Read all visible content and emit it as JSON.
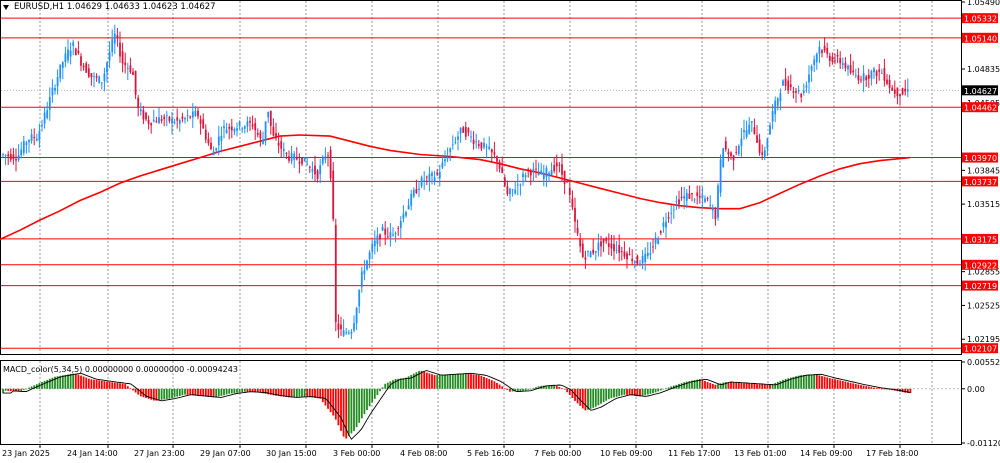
{
  "header": {
    "symbol": "EURUSD,H1",
    "ohlc": "1.04629 1.04633 1.04623 1.04627"
  },
  "price_axis": {
    "ticks": [
      "1.05490",
      "1.04835",
      "1.04505",
      "1.03845",
      "1.03515",
      "1.02855",
      "1.02525",
      "1.02195"
    ],
    "current_price": "1.04627"
  },
  "levels": [
    {
      "label": "1.05332",
      "value": 1.05332
    },
    {
      "label": "1.05140",
      "value": 1.0514
    },
    {
      "label": "1.04462",
      "value": 1.04462
    },
    {
      "label": "1.03970",
      "value": 1.0397
    },
    {
      "label": "1.03737",
      "value": 1.03737
    },
    {
      "label": "1.03175",
      "value": 1.03175
    },
    {
      "label": "1.02922",
      "value": 1.02922
    },
    {
      "label": "1.02719",
      "value": 1.02719
    },
    {
      "label": "1.02107",
      "value": 1.02107
    }
  ],
  "time_axis": {
    "labels": [
      "23 Jan 2025",
      "24 Jan 14:00",
      "27 Jan 23:00",
      "29 Jan 07:00",
      "30 Jan 15:00",
      "3 Feb 00:00",
      "4 Feb 08:00",
      "5 Feb 16:00",
      "7 Feb 00:00",
      "10 Feb 09:00",
      "11 Feb 17:00",
      "13 Feb 01:00",
      "14 Feb 09:00",
      "17 Feb 18:00"
    ]
  },
  "macd": {
    "title": "MACD_color(5,34,5) 0.00000000 0.00000000 -0.00094243",
    "ticks": [
      "0.0055297",
      "0.00",
      "-0.0112033"
    ]
  },
  "colors": {
    "bull": "#1e90ff",
    "bear": "#dc143c",
    "level_line": "#ff0000",
    "ma_line": "#ff0000",
    "macd_pos": "#228b22",
    "macd_neg": "#ff0000",
    "signal": "#000000",
    "price_badge_bg": "#000000"
  },
  "chart_data": {
    "type": "candlestick",
    "symbol": "EURUSD",
    "timeframe": "H1",
    "ylim": [
      1.0207,
      1.0549
    ],
    "moving_average": [
      [
        0,
        1.0317
      ],
      [
        20,
        1.0326
      ],
      [
        40,
        1.0336
      ],
      [
        60,
        1.0345
      ],
      [
        80,
        1.0355
      ],
      [
        100,
        1.0363
      ],
      [
        120,
        1.0372
      ],
      [
        140,
        1.0379
      ],
      [
        160,
        1.0385
      ],
      [
        180,
        1.0391
      ],
      [
        200,
        1.0397
      ],
      [
        220,
        1.0403
      ],
      [
        240,
        1.0408
      ],
      [
        260,
        1.0413
      ],
      [
        280,
        1.0418
      ],
      [
        300,
        1.0419
      ],
      [
        330,
        1.0418
      ],
      [
        350,
        1.0413
      ],
      [
        370,
        1.0408
      ],
      [
        390,
        1.0404
      ],
      [
        420,
        1.04
      ],
      [
        450,
        1.0398
      ],
      [
        480,
        1.0395
      ],
      [
        500,
        1.0391
      ],
      [
        520,
        1.0386
      ],
      [
        540,
        1.0382
      ],
      [
        560,
        1.0377
      ],
      [
        580,
        1.0372
      ],
      [
        600,
        1.0367
      ],
      [
        620,
        1.0362
      ],
      [
        640,
        1.0357
      ],
      [
        660,
        1.0353
      ],
      [
        680,
        1.035
      ],
      [
        700,
        1.0348
      ],
      [
        720,
        1.0347
      ],
      [
        740,
        1.0347
      ],
      [
        760,
        1.0353
      ],
      [
        780,
        1.0362
      ],
      [
        800,
        1.0371
      ],
      [
        820,
        1.0379
      ],
      [
        840,
        1.0386
      ],
      [
        860,
        1.0391
      ],
      [
        880,
        1.0394
      ],
      [
        900,
        1.0396
      ],
      [
        910,
        1.0397
      ]
    ],
    "price_path": [
      [
        3,
        1.04
      ],
      [
        20,
        1.0398
      ],
      [
        30,
        1.0415
      ],
      [
        40,
        1.0418
      ],
      [
        48,
        1.044
      ],
      [
        55,
        1.0462
      ],
      [
        65,
        1.049
      ],
      [
        75,
        1.0508
      ],
      [
        85,
        1.0488
      ],
      [
        95,
        1.0475
      ],
      [
        105,
        1.0472
      ],
      [
        112,
        1.05
      ],
      [
        118,
        1.0518
      ],
      [
        125,
        1.049
      ],
      [
        135,
        1.0482
      ],
      [
        140,
        1.0445
      ],
      [
        150,
        1.0432
      ],
      [
        165,
        1.0435
      ],
      [
        180,
        1.0432
      ],
      [
        200,
        1.044
      ],
      [
        215,
        1.04
      ],
      [
        225,
        1.0425
      ],
      [
        240,
        1.0428
      ],
      [
        255,
        1.043
      ],
      [
        265,
        1.041
      ],
      [
        270,
        1.0448
      ],
      [
        275,
        1.0418
      ],
      [
        290,
        1.0398
      ],
      [
        305,
        1.0395
      ],
      [
        320,
        1.038
      ],
      [
        330,
        1.0405
      ],
      [
        335,
        1.0368
      ],
      [
        338,
        1.0235
      ],
      [
        345,
        1.0225
      ],
      [
        355,
        1.023
      ],
      [
        365,
        1.0285
      ],
      [
        375,
        1.031
      ],
      [
        385,
        1.0325
      ],
      [
        395,
        1.032
      ],
      [
        405,
        1.034
      ],
      [
        415,
        1.036
      ],
      [
        425,
        1.0375
      ],
      [
        440,
        1.038
      ],
      [
        455,
        1.041
      ],
      [
        465,
        1.0425
      ],
      [
        475,
        1.0415
      ],
      [
        490,
        1.0405
      ],
      [
        500,
        1.0395
      ],
      [
        510,
        1.036
      ],
      [
        520,
        1.037
      ],
      [
        530,
        1.0385
      ],
      [
        545,
        1.038
      ],
      [
        560,
        1.039
      ],
      [
        570,
        1.037
      ],
      [
        578,
        1.033
      ],
      [
        585,
        1.03
      ],
      [
        595,
        1.0305
      ],
      [
        605,
        1.0315
      ],
      [
        615,
        1.031
      ],
      [
        625,
        1.0305
      ],
      [
        640,
        1.0295
      ],
      [
        650,
        1.03
      ],
      [
        660,
        1.032
      ],
      [
        670,
        1.034
      ],
      [
        680,
        1.0355
      ],
      [
        690,
        1.036
      ],
      [
        700,
        1.0358
      ],
      [
        710,
        1.0355
      ],
      [
        718,
        1.034
      ],
      [
        725,
        1.041
      ],
      [
        735,
        1.0395
      ],
      [
        745,
        1.042
      ],
      [
        755,
        1.043
      ],
      [
        765,
        1.0395
      ],
      [
        775,
        1.044
      ],
      [
        785,
        1.047
      ],
      [
        795,
        1.0465
      ],
      [
        805,
        1.0458
      ],
      [
        815,
        1.049
      ],
      [
        822,
        1.0505
      ],
      [
        832,
        1.0495
      ],
      [
        845,
        1.049
      ],
      [
        855,
        1.0478
      ],
      [
        865,
        1.0475
      ],
      [
        875,
        1.048
      ],
      [
        885,
        1.048
      ],
      [
        895,
        1.0462
      ],
      [
        905,
        1.046
      ],
      [
        910,
        1.0463
      ]
    ],
    "macd_ylim": [
      -0.0112033,
      0.0055297
    ],
    "macd_hist": [
      [
        5,
        -0.0004
      ],
      [
        20,
        -0.0006
      ],
      [
        35,
        0.0008
      ],
      [
        55,
        0.0025
      ],
      [
        75,
        0.0032
      ],
      [
        90,
        0.002
      ],
      [
        110,
        0.0014
      ],
      [
        125,
        0.001
      ],
      [
        140,
        -0.0015
      ],
      [
        155,
        -0.0025
      ],
      [
        170,
        -0.002
      ],
      [
        185,
        -0.0012
      ],
      [
        200,
        -0.0015
      ],
      [
        215,
        -0.0018
      ],
      [
        230,
        -0.001
      ],
      [
        245,
        -0.0006
      ],
      [
        260,
        -0.0008
      ],
      [
        275,
        -0.0014
      ],
      [
        290,
        -0.0018
      ],
      [
        305,
        -0.0016
      ],
      [
        320,
        -0.002
      ],
      [
        335,
        -0.006
      ],
      [
        345,
        -0.0105
      ],
      [
        355,
        -0.0085
      ],
      [
        365,
        -0.005
      ],
      [
        375,
        -0.002
      ],
      [
        385,
        0.001
      ],
      [
        395,
        0.002
      ],
      [
        405,
        0.0022
      ],
      [
        420,
        0.0038
      ],
      [
        435,
        0.0028
      ],
      [
        450,
        0.003
      ],
      [
        465,
        0.0032
      ],
      [
        480,
        0.0028
      ],
      [
        495,
        0.0015
      ],
      [
        510,
        -0.0006
      ],
      [
        525,
        -0.0004
      ],
      [
        540,
        0.0006
      ],
      [
        555,
        0.0008
      ],
      [
        565,
        -0.0002
      ],
      [
        575,
        -0.0025
      ],
      [
        585,
        -0.0045
      ],
      [
        595,
        -0.0038
      ],
      [
        610,
        -0.002
      ],
      [
        625,
        -0.0012
      ],
      [
        640,
        -0.0016
      ],
      [
        655,
        -0.0008
      ],
      [
        670,
        0.0004
      ],
      [
        685,
        0.0014
      ],
      [
        700,
        0.002
      ],
      [
        715,
        0.0008
      ],
      [
        725,
        0.0014
      ],
      [
        740,
        0.0012
      ],
      [
        755,
        0.001
      ],
      [
        770,
        0.0008
      ],
      [
        785,
        0.002
      ],
      [
        800,
        0.0028
      ],
      [
        815,
        0.003
      ],
      [
        830,
        0.0022
      ],
      [
        845,
        0.0015
      ],
      [
        860,
        0.0008
      ],
      [
        875,
        0.0002
      ],
      [
        890,
        -0.0002
      ],
      [
        905,
        -0.0008
      ],
      [
        912,
        -0.0009
      ]
    ]
  }
}
